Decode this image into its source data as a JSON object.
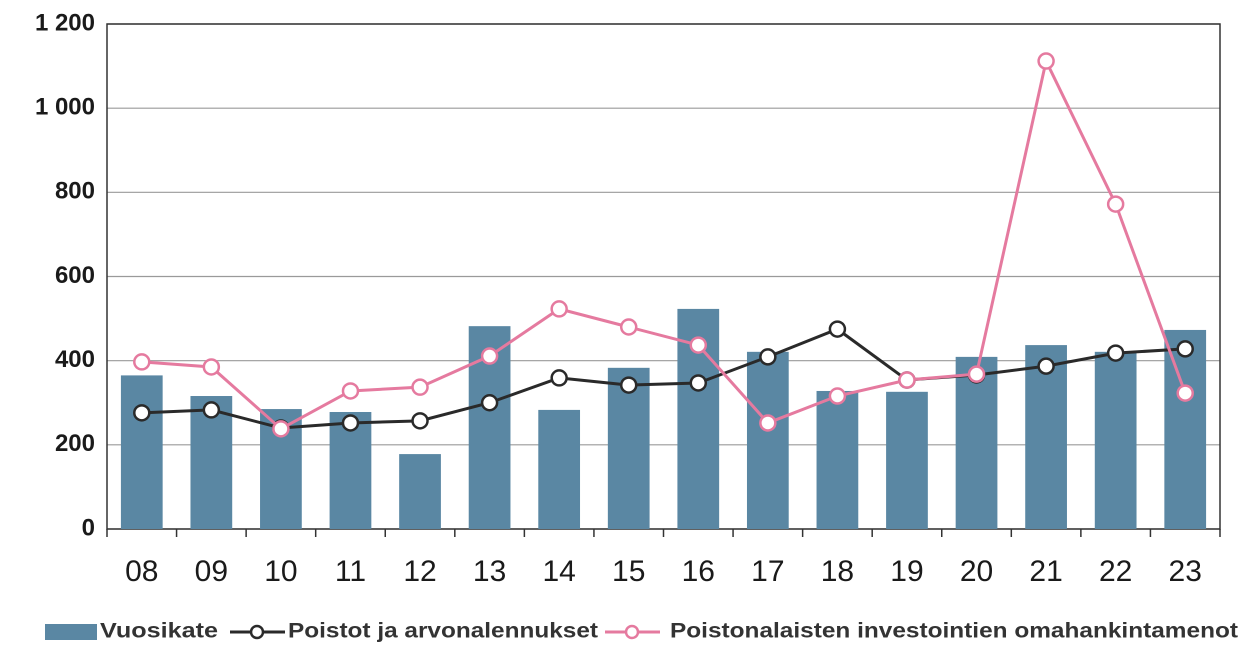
{
  "chart_data": {
    "type": "bar-line",
    "categories": [
      "08",
      "09",
      "10",
      "11",
      "12",
      "13",
      "14",
      "15",
      "16",
      "17",
      "18",
      "19",
      "20",
      "21",
      "22",
      "23"
    ],
    "series": [
      {
        "name": "Vuosikate",
        "type": "bar",
        "color": "#5a87a3",
        "values": [
          365,
          316,
          285,
          278,
          178,
          482,
          283,
          383,
          523,
          421,
          328,
          326,
          409,
          437,
          421,
          473
        ]
      },
      {
        "name": "Poistot ja arvonalennukset",
        "type": "line",
        "color": "#2a2a2a",
        "values": [
          276,
          283,
          240,
          252,
          257,
          300,
          359,
          342,
          347,
          409,
          475,
          354,
          366,
          387,
          418,
          428
        ]
      },
      {
        "name": "Poistonalaisten investointien omahankintamenot",
        "type": "line",
        "color": "#e57a9f",
        "values": [
          397,
          385,
          238,
          328,
          337,
          411,
          523,
          480,
          437,
          252,
          316,
          354,
          368,
          1112,
          772,
          323
        ]
      }
    ],
    "ylim": [
      0,
      1200
    ],
    "yticks": [
      0,
      200,
      400,
      600,
      800,
      {
        "value": 1000,
        "label": "1 000"
      },
      {
        "value": 1200,
        "label": "1 200"
      }
    ],
    "grid": true
  }
}
